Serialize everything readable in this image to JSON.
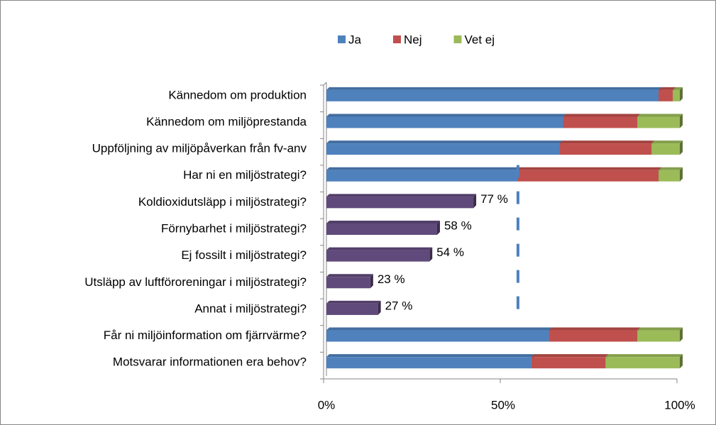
{
  "chart_data": {
    "type": "stacked_bar_horizontal",
    "categories": [
      "Kännedom om produktion",
      "Kännedom om miljöprestanda",
      "Uppföljning av miljöpåverkan från fv-anv",
      "Har ni en miljöstrategi?",
      "Koldioxidutsläpp i miljöstrategi?",
      "Förnybarhet i miljöstrategi?",
      "Ej fossilt i miljöstrategi?",
      "Utsläpp av luftföroreningar i miljöstrategi?",
      "Annat i miljöstrategi?",
      "Får ni miljöinformation om fjärrvärme?",
      "Motsvarar informationen era behov?"
    ],
    "series": [
      {
        "name": "Ja",
        "color": "#4f81bd",
        "values": [
          94,
          67,
          66,
          54,
          null,
          null,
          null,
          null,
          null,
          63,
          58
        ]
      },
      {
        "name": "Nej",
        "color": "#c0504d",
        "values": [
          4,
          21,
          26,
          40,
          null,
          null,
          null,
          null,
          null,
          25,
          21
        ]
      },
      {
        "name": "Vet ej",
        "color": "#9bbb59",
        "values": [
          2,
          12,
          8,
          6,
          null,
          null,
          null,
          null,
          null,
          12,
          21
        ]
      },
      {
        "color": "#604a7b",
        "values": [
          null,
          null,
          null,
          null,
          77,
          58,
          54,
          23,
          27,
          null,
          null
        ],
        "value_labels": [
          null,
          null,
          null,
          null,
          "77 %",
          "58 %",
          "54 %",
          "23 %",
          "27 %",
          null,
          null
        ]
      }
    ],
    "xlim": [
      0,
      100
    ],
    "xticks": [
      {
        "value": 0,
        "label": "0%"
      },
      {
        "value": 50,
        "label": "50%"
      },
      {
        "value": 100,
        "label": "100%"
      }
    ]
  }
}
